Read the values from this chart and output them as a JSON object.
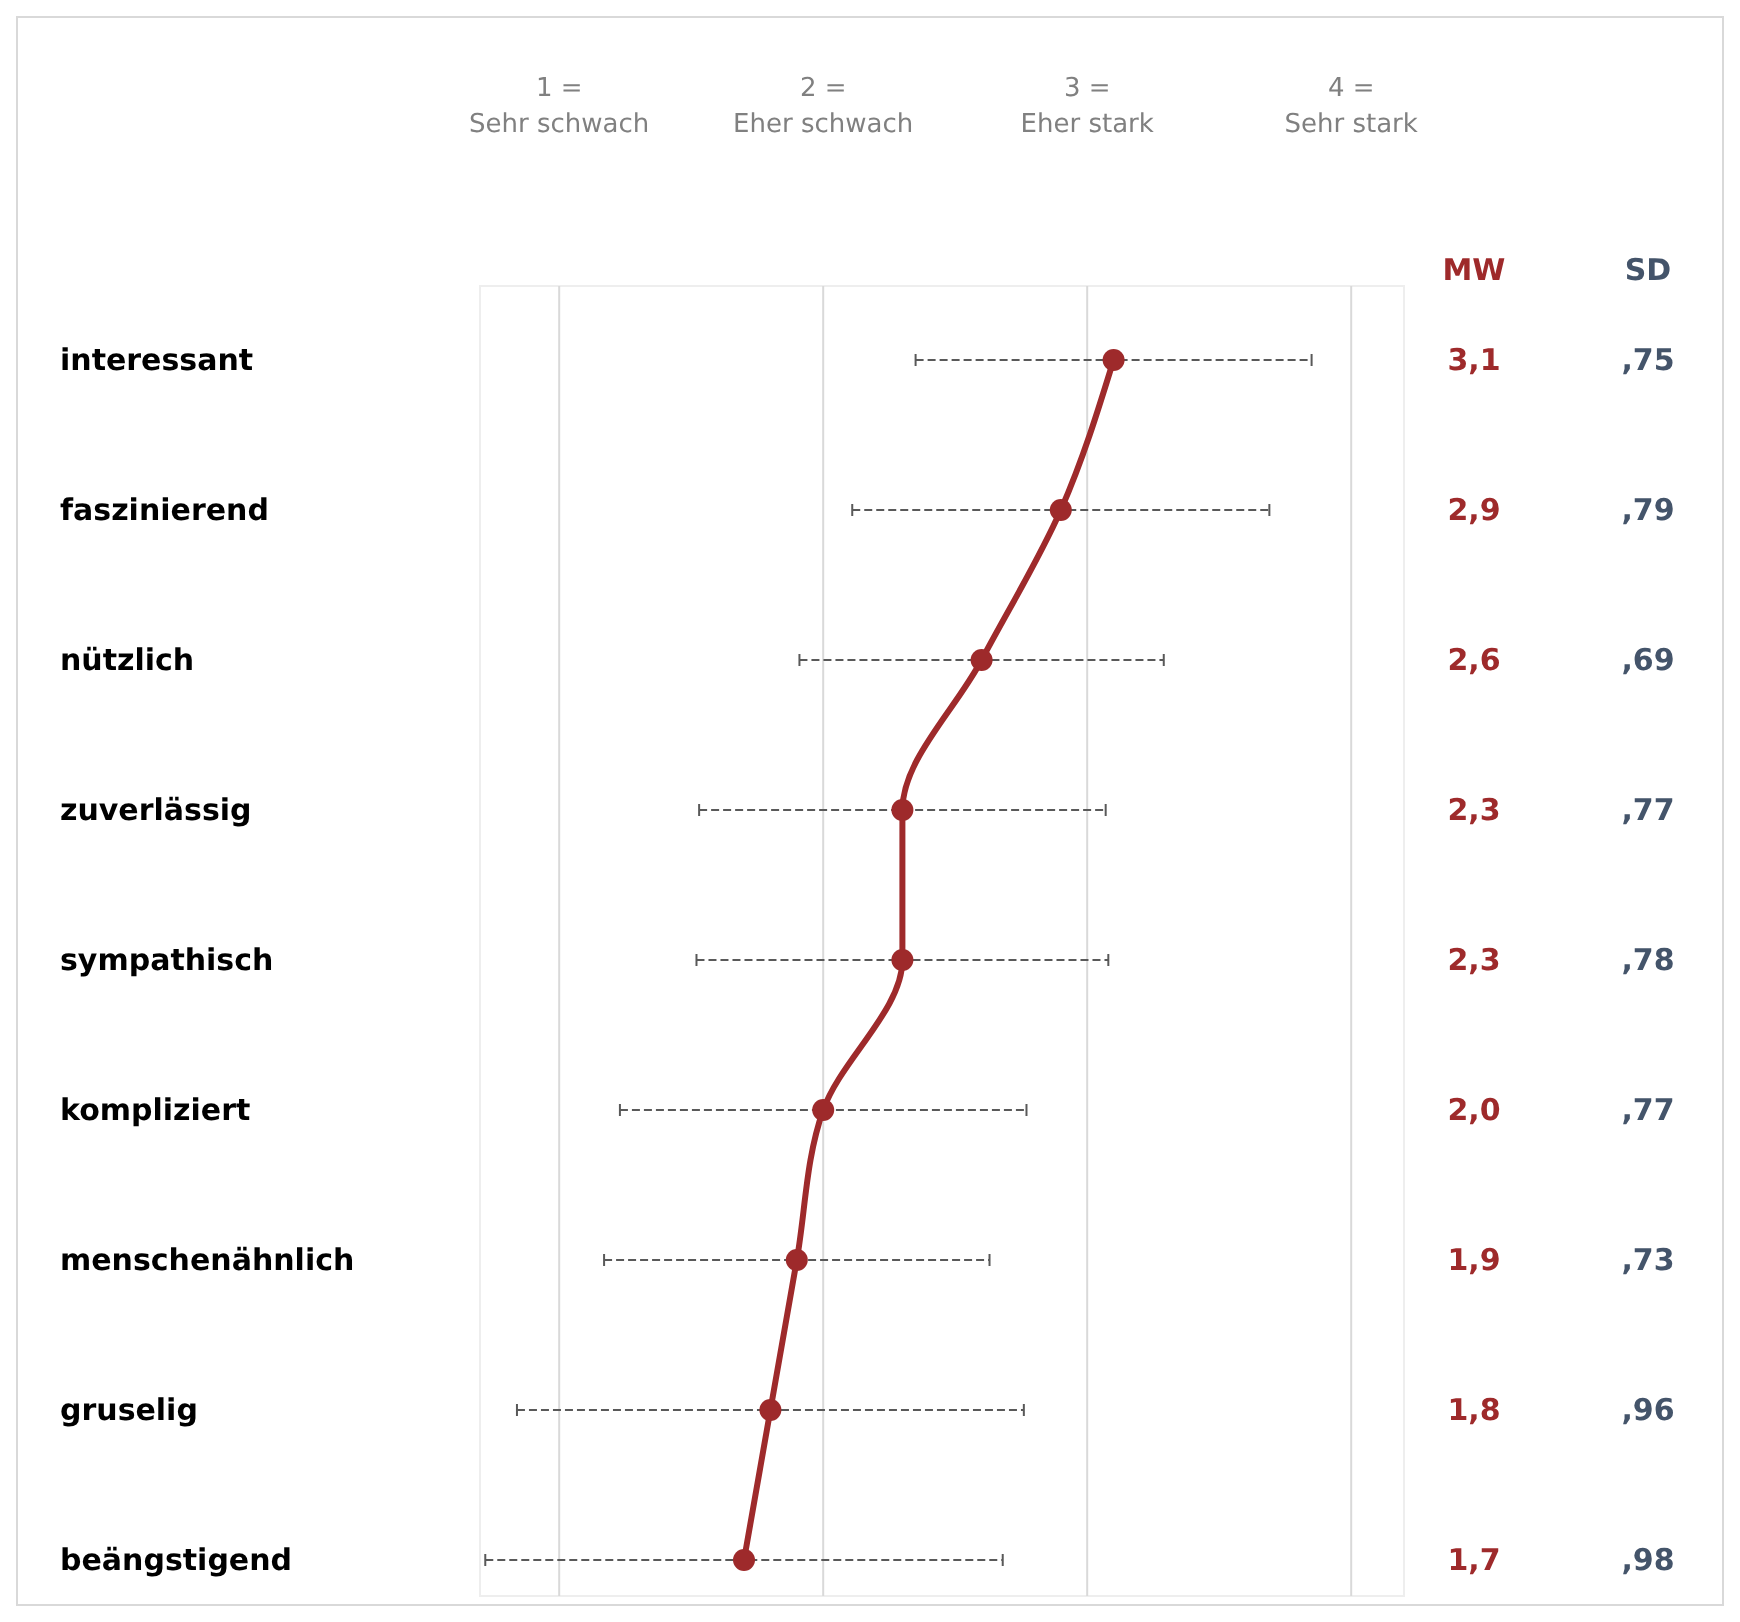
{
  "chart_data": {
    "type": "line",
    "orientation": "horizontal",
    "categories": [
      "interessant",
      "faszinierend",
      "nützlich",
      "zuverlässig",
      "sympathisch",
      "kompliziert",
      "menschenähnlich",
      "gruselig",
      "beängstigend"
    ],
    "series": [
      {
        "name": "MW",
        "color": "#9e2a2b",
        "values": [
          3.1,
          2.9,
          2.6,
          2.3,
          2.3,
          2.0,
          1.9,
          1.8,
          1.7
        ],
        "errors": [
          0.75,
          0.79,
          0.69,
          0.77,
          0.78,
          0.77,
          0.73,
          0.96,
          0.98
        ],
        "value_labels": [
          "3,1",
          "2,9",
          "2,6",
          "2,3",
          "2,3",
          "2,0",
          "1,9",
          "1,8",
          "1,7"
        ]
      }
    ],
    "xlim": [
      0.7,
      4.2
    ],
    "xticks": [
      {
        "value": 1,
        "label": "1 =\nSehr schwach"
      },
      {
        "value": 2,
        "label": "2 =\nEher schwach"
      },
      {
        "value": 3,
        "label": "3 =\nEher stark"
      },
      {
        "value": 4,
        "label": "4 =\nSehr stark"
      }
    ],
    "grid": "x",
    "marker": "circle",
    "line_style": "solid",
    "annotations": [
      "SD",
      ",75",
      ",79",
      ",69",
      ",77",
      ",78",
      ",77",
      ",73",
      ",96",
      ",98"
    ]
  }
}
